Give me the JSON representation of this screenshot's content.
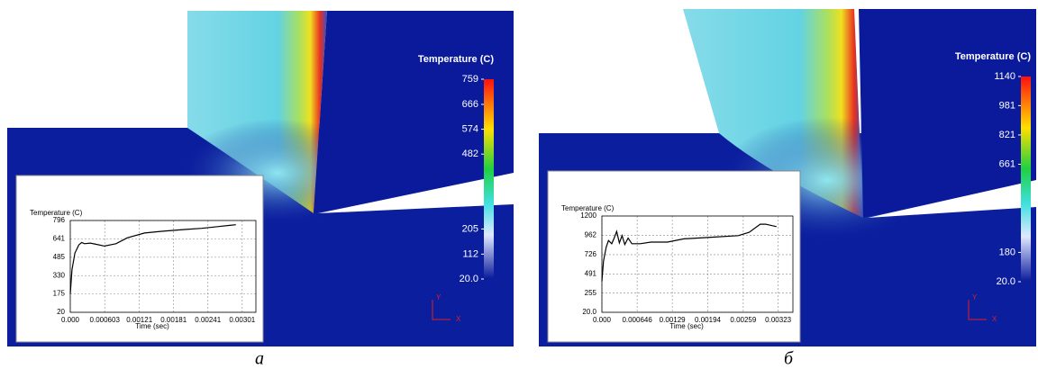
{
  "panels": [
    {
      "caption": "а",
      "colorbar": {
        "title": "Temperature (C)",
        "lim": [
          20,
          759
        ],
        "ticks": [
          759,
          666,
          574,
          482,
          205,
          112,
          {
            "value": 20,
            "label": "20.0"
          }
        ]
      },
      "triad": {
        "y": "Y",
        "x": "X"
      }
    },
    {
      "caption": "б",
      "colorbar": {
        "title": "Temperature (C)",
        "lim": [
          20,
          1140
        ],
        "ticks": [
          1140,
          981,
          821,
          661,
          180,
          {
            "value": 20,
            "label": "20.0"
          }
        ]
      },
      "triad": {
        "y": "Y",
        "x": "X"
      }
    }
  ],
  "chart_data": [
    {
      "type": "line",
      "y_label": "Temperature (C)",
      "x_label": "Time (sec)",
      "xlim": [
        0,
        0.00325
      ],
      "xticks": [
        {
          "value": 0,
          "label": "0.000"
        },
        0.000603,
        0.00121,
        0.00181,
        0.00241,
        0.00301
      ],
      "ylim": [
        20,
        796
      ],
      "yticks": [
        20,
        175,
        330,
        485,
        641,
        796
      ],
      "grid": true,
      "x": [
        0,
        3e-05,
        8e-05,
        0.00015,
        0.0002,
        0.00025,
        0.00035,
        0.00045,
        0.0006,
        0.0008,
        0.001,
        0.0013,
        0.0016,
        0.002,
        0.0023,
        0.0026,
        0.0029
      ],
      "series": [
        {
          "color": "#000000",
          "values": [
            175,
            380,
            520,
            590,
            610,
            600,
            605,
            595,
            580,
            600,
            650,
            690,
            705,
            720,
            730,
            745,
            760
          ]
        }
      ]
    },
    {
      "type": "line",
      "y_label": "Temperature (C)",
      "x_label": "Time (sec)",
      "xlim": [
        0,
        0.0035
      ],
      "xticks": [
        {
          "value": 0,
          "label": "0.000"
        },
        0.000646,
        0.00129,
        0.00194,
        0.00259,
        0.00323
      ],
      "ylim": [
        20,
        1200
      ],
      "yticks": [
        {
          "value": 20,
          "label": "20.0"
        },
        255,
        491,
        726,
        962,
        1200
      ],
      "grid": true,
      "x": [
        0,
        3e-05,
        8e-05,
        0.00012,
        0.00018,
        0.00022,
        0.00027,
        0.00032,
        0.00037,
        0.00042,
        0.00048,
        0.00055,
        0.0007,
        0.0009,
        0.0012,
        0.0015,
        0.002,
        0.0025,
        0.0027,
        0.0029,
        0.003,
        0.0032
      ],
      "series": [
        {
          "color": "#000000",
          "values": [
            400,
            650,
            820,
            900,
            860,
            920,
            1010,
            870,
            960,
            850,
            930,
            860,
            860,
            880,
            880,
            920,
            940,
            960,
            1000,
            1100,
            1100,
            1070
          ]
        }
      ]
    }
  ]
}
